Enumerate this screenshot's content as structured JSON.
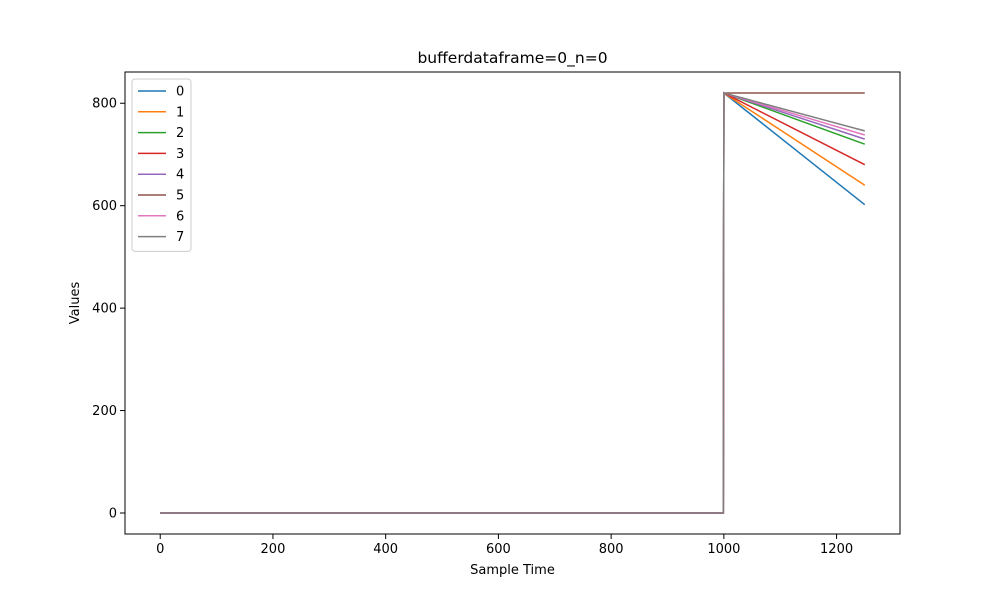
{
  "chart_data": {
    "type": "line",
    "title": "bufferdataframe=0_n=0",
    "xlabel": "Sample Time",
    "ylabel": "Values",
    "xlim": [
      -62.5,
      1312.5
    ],
    "ylim": [
      -41,
      861
    ],
    "xticks": [
      0,
      200,
      400,
      600,
      800,
      1000,
      1200
    ],
    "yticks": [
      0,
      200,
      400,
      600,
      800
    ],
    "grid": false,
    "legend_position": "upper-left",
    "x": [
      0,
      999,
      1000,
      1250
    ],
    "series": [
      {
        "name": "0",
        "color": "#1f77b4",
        "values": [
          0,
          0,
          820,
          602
        ]
      },
      {
        "name": "1",
        "color": "#ff7f0e",
        "values": [
          0,
          0,
          820,
          640
        ]
      },
      {
        "name": "2",
        "color": "#2ca02c",
        "values": [
          0,
          0,
          820,
          720
        ]
      },
      {
        "name": "3",
        "color": "#d62728",
        "values": [
          0,
          0,
          820,
          680
        ]
      },
      {
        "name": "4",
        "color": "#9467bd",
        "values": [
          0,
          0,
          820,
          730
        ]
      },
      {
        "name": "5",
        "color": "#8c564b",
        "values": [
          0,
          0,
          820,
          820
        ]
      },
      {
        "name": "6",
        "color": "#e377c2",
        "values": [
          0,
          0,
          820,
          738
        ]
      },
      {
        "name": "7",
        "color": "#7f7f7f",
        "values": [
          0,
          0,
          820,
          746
        ]
      }
    ]
  }
}
